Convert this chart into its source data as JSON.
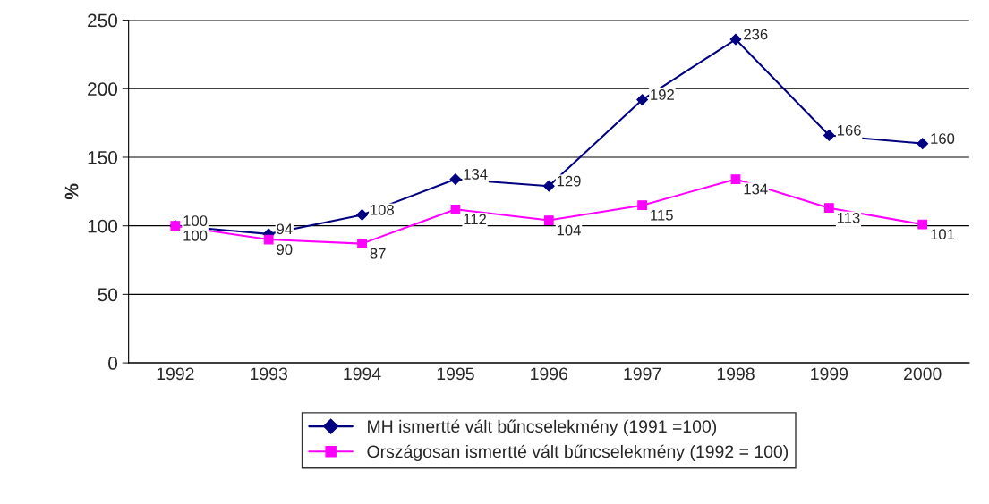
{
  "chart_data": {
    "type": "line",
    "ylabel": "%",
    "categories": [
      "1992",
      "1993",
      "1994",
      "1995",
      "1996",
      "1997",
      "1998",
      "1999",
      "2000"
    ],
    "series": [
      {
        "name": "MH ismertté vált bűncselekmény (1991 =100)",
        "color": "#000080",
        "marker": "diamond",
        "values": [
          100,
          94,
          108,
          134,
          129,
          192,
          236,
          166,
          160
        ]
      },
      {
        "name": "Országosan ismertté vált bűncselekmény (1992 = 100)",
        "color": "#ff00ff",
        "marker": "square",
        "values": [
          100,
          90,
          87,
          112,
          104,
          115,
          134,
          113,
          101
        ]
      }
    ],
    "ylim": [
      0,
      250
    ],
    "yticks": [
      0,
      50,
      100,
      150,
      200,
      250
    ],
    "grid": "y",
    "legend": "bottom",
    "data_labels": true,
    "line_style": "solid"
  }
}
